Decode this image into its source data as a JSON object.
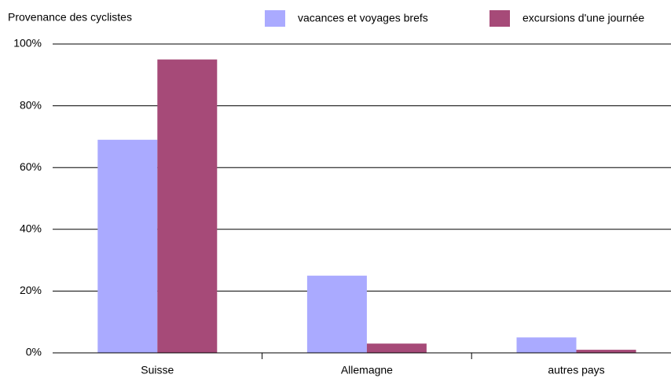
{
  "chart_data": {
    "type": "bar",
    "title": "Provenance des cyclistes",
    "categories": [
      "Suisse",
      "Allemagne",
      "autres pays"
    ],
    "series": [
      {
        "name": "vacances et voyages brefs",
        "color": "#aaaaff",
        "values": [
          69,
          25,
          5
        ]
      },
      {
        "name": "excursions d'une journée",
        "color": "#a64a78",
        "values": [
          95,
          3,
          1
        ]
      }
    ],
    "ylim": [
      0,
      100
    ],
    "yticks": [
      {
        "value": 0,
        "label": "0%"
      },
      {
        "value": 20,
        "label": "20%"
      },
      {
        "value": 40,
        "label": "40%"
      },
      {
        "value": 60,
        "label": "60%"
      },
      {
        "value": 80,
        "label": "80%"
      },
      {
        "value": 100,
        "label": "100%"
      }
    ],
    "grid": true
  }
}
